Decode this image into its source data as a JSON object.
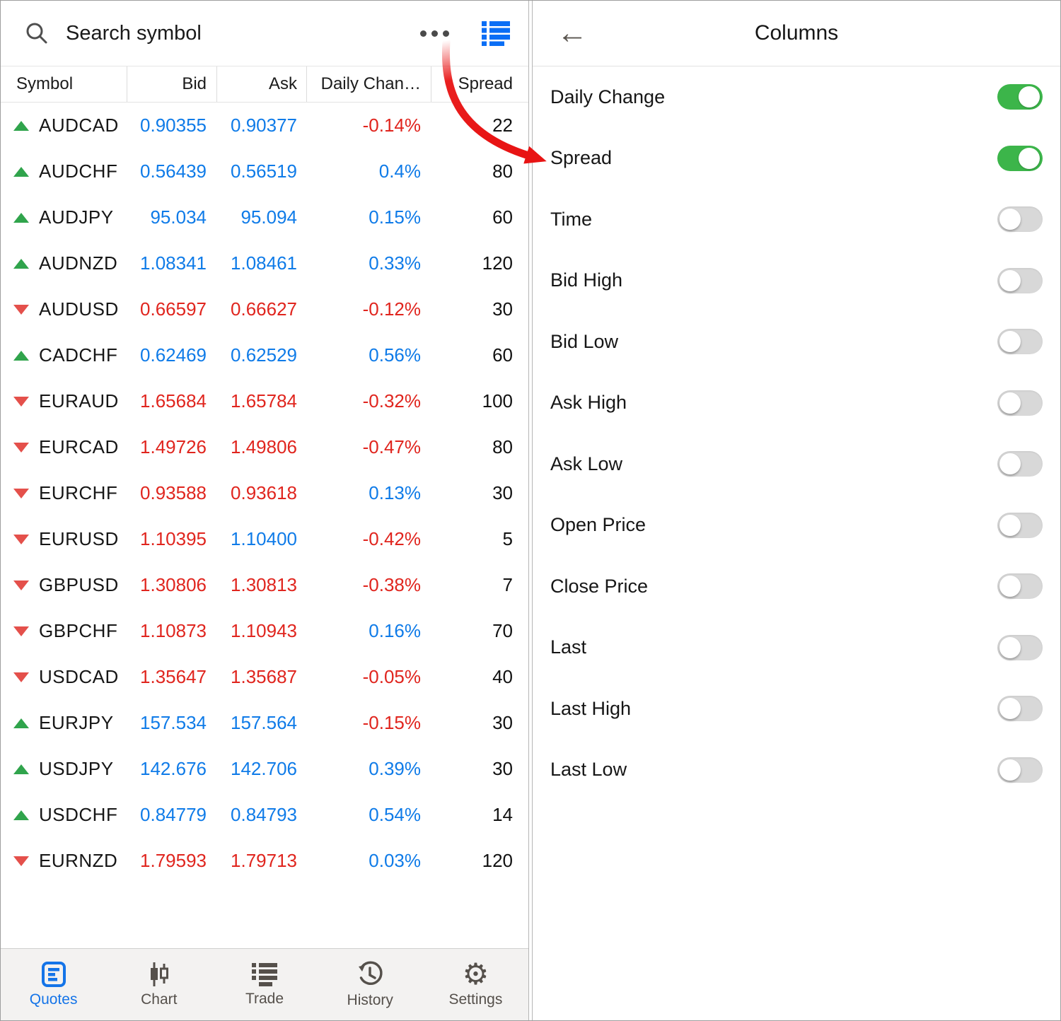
{
  "left_panel": {
    "search": {
      "placeholder": "Search symbol"
    },
    "table": {
      "headers": [
        "Symbol",
        "Bid",
        "Ask",
        "Daily Chan…",
        "Spread"
      ],
      "rows": [
        {
          "symbol": "AUDCAD",
          "dir": "up",
          "bid": "0.90355",
          "ask": "0.90377",
          "bid_color": "blue",
          "ask_color": "blue",
          "change": "-0.14%",
          "change_color": "red",
          "spread": "22"
        },
        {
          "symbol": "AUDCHF",
          "dir": "up",
          "bid": "0.56439",
          "ask": "0.56519",
          "bid_color": "blue",
          "ask_color": "blue",
          "change": "0.4%",
          "change_color": "blue",
          "spread": "80"
        },
        {
          "symbol": "AUDJPY",
          "dir": "up",
          "bid": "95.034",
          "ask": "95.094",
          "bid_color": "blue",
          "ask_color": "blue",
          "change": "0.15%",
          "change_color": "blue",
          "spread": "60"
        },
        {
          "symbol": "AUDNZD",
          "dir": "up",
          "bid": "1.08341",
          "ask": "1.08461",
          "bid_color": "blue",
          "ask_color": "blue",
          "change": "0.33%",
          "change_color": "blue",
          "spread": "120"
        },
        {
          "symbol": "AUDUSD",
          "dir": "down",
          "bid": "0.66597",
          "ask": "0.66627",
          "bid_color": "red",
          "ask_color": "red",
          "change": "-0.12%",
          "change_color": "red",
          "spread": "30"
        },
        {
          "symbol": "CADCHF",
          "dir": "up",
          "bid": "0.62469",
          "ask": "0.62529",
          "bid_color": "blue",
          "ask_color": "blue",
          "change": "0.56%",
          "change_color": "blue",
          "spread": "60"
        },
        {
          "symbol": "EURAUD",
          "dir": "down",
          "bid": "1.65684",
          "ask": "1.65784",
          "bid_color": "red",
          "ask_color": "red",
          "change": "-0.32%",
          "change_color": "red",
          "spread": "100"
        },
        {
          "symbol": "EURCAD",
          "dir": "down",
          "bid": "1.49726",
          "ask": "1.49806",
          "bid_color": "red",
          "ask_color": "red",
          "change": "-0.47%",
          "change_color": "red",
          "spread": "80"
        },
        {
          "symbol": "EURCHF",
          "dir": "down",
          "bid": "0.93588",
          "ask": "0.93618",
          "bid_color": "red",
          "ask_color": "red",
          "change": "0.13%",
          "change_color": "blue",
          "spread": "30"
        },
        {
          "symbol": "EURUSD",
          "dir": "down",
          "bid": "1.10395",
          "ask": "1.10400",
          "bid_color": "red",
          "ask_color": "blue",
          "change": "-0.42%",
          "change_color": "red",
          "spread": "5"
        },
        {
          "symbol": "GBPUSD",
          "dir": "down",
          "bid": "1.30806",
          "ask": "1.30813",
          "bid_color": "red",
          "ask_color": "red",
          "change": "-0.38%",
          "change_color": "red",
          "spread": "7"
        },
        {
          "symbol": "GBPCHF",
          "dir": "down",
          "bid": "1.10873",
          "ask": "1.10943",
          "bid_color": "red",
          "ask_color": "red",
          "change": "0.16%",
          "change_color": "blue",
          "spread": "70"
        },
        {
          "symbol": "USDCAD",
          "dir": "down",
          "bid": "1.35647",
          "ask": "1.35687",
          "bid_color": "red",
          "ask_color": "red",
          "change": "-0.05%",
          "change_color": "red",
          "spread": "40"
        },
        {
          "symbol": "EURJPY",
          "dir": "up",
          "bid": "157.534",
          "ask": "157.564",
          "bid_color": "blue",
          "ask_color": "blue",
          "change": "-0.15%",
          "change_color": "red",
          "spread": "30"
        },
        {
          "symbol": "USDJPY",
          "dir": "up",
          "bid": "142.676",
          "ask": "142.706",
          "bid_color": "blue",
          "ask_color": "blue",
          "change": "0.39%",
          "change_color": "blue",
          "spread": "30"
        },
        {
          "symbol": "USDCHF",
          "dir": "up",
          "bid": "0.84779",
          "ask": "0.84793",
          "bid_color": "blue",
          "ask_color": "blue",
          "change": "0.54%",
          "change_color": "blue",
          "spread": "14"
        },
        {
          "symbol": "EURNZD",
          "dir": "down",
          "bid": "1.79593",
          "ask": "1.79713",
          "bid_color": "red",
          "ask_color": "red",
          "change": "0.03%",
          "change_color": "blue",
          "spread": "120"
        }
      ]
    },
    "nav": [
      {
        "label": "Quotes",
        "icon": "quotes-icon",
        "active": true
      },
      {
        "label": "Chart",
        "icon": "chart-icon",
        "active": false
      },
      {
        "label": "Trade",
        "icon": "trade-icon",
        "active": false
      },
      {
        "label": "History",
        "icon": "history-icon",
        "active": false
      },
      {
        "label": "Settings",
        "icon": "settings-icon",
        "active": false
      }
    ]
  },
  "right_panel": {
    "title": "Columns",
    "items": [
      {
        "label": "Daily Change",
        "on": true
      },
      {
        "label": "Spread",
        "on": true
      },
      {
        "label": "Time",
        "on": false
      },
      {
        "label": "Bid High",
        "on": false
      },
      {
        "label": "Bid Low",
        "on": false
      },
      {
        "label": "Ask High",
        "on": false
      },
      {
        "label": "Ask Low",
        "on": false
      },
      {
        "label": "Open Price",
        "on": false
      },
      {
        "label": "Close Price",
        "on": false
      },
      {
        "label": "Last",
        "on": false
      },
      {
        "label": "Last High",
        "on": false
      },
      {
        "label": "Last Low",
        "on": false
      }
    ]
  },
  "icons": {
    "search": "magnifier",
    "menu": "three-dots",
    "list_view": "list",
    "back": "left-arrow",
    "row_up": "green-up-triangle",
    "row_down": "red-down-triangle"
  },
  "colors": {
    "value_blue": "#0f7be8",
    "value_red": "#e0251e",
    "up_green": "#30a44c",
    "down_red": "#e4504b",
    "toggle_on_green": "#3cb54a",
    "toggle_off_gray": "#d8d8d8",
    "nav_active_blue": "#1474e8",
    "annotation_arrow_red": "#e81414"
  }
}
